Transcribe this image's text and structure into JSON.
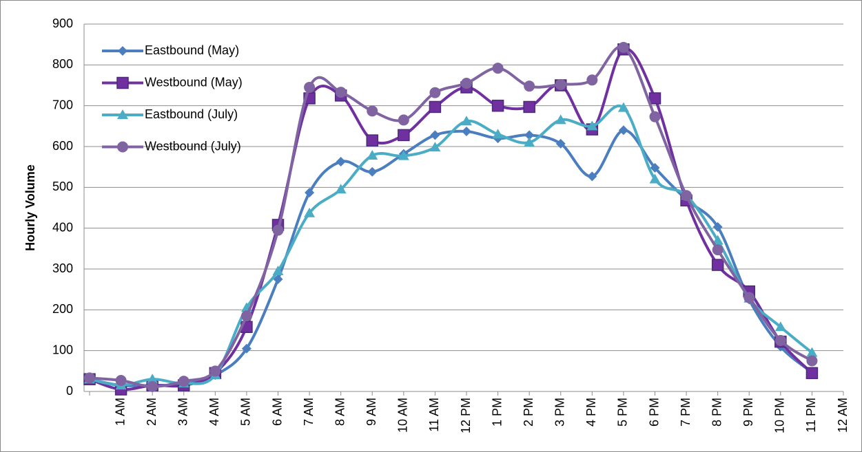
{
  "chart_data": {
    "type": "line",
    "y_label": "Hourly Volume",
    "categories": [
      null,
      "1 AM",
      "2 AM",
      "3 AM",
      "4 AM",
      "5 AM",
      "6 AM",
      "7 AM",
      "8 AM",
      "9 AM",
      "10 AM",
      "11 AM",
      "12 PM",
      "1 PM",
      "2 PM",
      "3 PM",
      "4 PM",
      "5 PM",
      "6 PM",
      "7 PM",
      "8 PM",
      "9 PM",
      "10 PM",
      "11 PM",
      "12 AM"
    ],
    "series": [
      {
        "name": "Eastbound (May)",
        "color": "#4a7ebf",
        "marker": "diamond",
        "values": [
          30,
          15,
          15,
          18,
          40,
          105,
          275,
          487,
          563,
          538,
          582,
          628,
          637,
          620,
          628,
          607,
          527,
          640,
          548,
          470,
          403,
          225,
          110,
          47,
          null
        ]
      },
      {
        "name": "Westbound (May)",
        "color": "#7030a0",
        "marker": "square",
        "values": [
          30,
          5,
          15,
          15,
          45,
          158,
          408,
          718,
          725,
          615,
          628,
          697,
          745,
          700,
          697,
          750,
          642,
          838,
          718,
          468,
          310,
          245,
          122,
          45,
          null
        ]
      },
      {
        "name": "Eastbound (July)",
        "color": "#4bacc6",
        "marker": "triangle",
        "values": [
          30,
          15,
          30,
          20,
          40,
          205,
          295,
          437,
          495,
          578,
          577,
          598,
          662,
          630,
          610,
          665,
          650,
          695,
          520,
          480,
          370,
          228,
          158,
          95,
          null
        ]
      },
      {
        "name": "Westbound (July)",
        "color": "#8064a2",
        "marker": "circle",
        "values": [
          33,
          27,
          12,
          25,
          50,
          185,
          395,
          745,
          733,
          687,
          665,
          732,
          755,
          792,
          748,
          752,
          763,
          843,
          673,
          480,
          347,
          230,
          125,
          75,
          null
        ]
      }
    ],
    "ylim": [
      0,
      900
    ],
    "yticks": [
      0,
      100,
      200,
      300,
      400,
      500,
      600,
      700,
      800,
      900
    ],
    "grid": true,
    "legend": "upper-left",
    "smooth": true
  }
}
